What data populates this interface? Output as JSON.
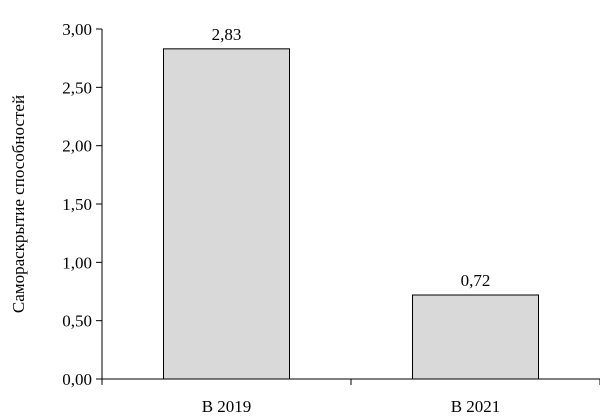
{
  "chart_data": {
    "type": "bar",
    "categories": [
      "В 2019",
      "В 2021"
    ],
    "values": [
      2.83,
      0.72
    ],
    "value_labels": [
      "2,83",
      "0,72"
    ],
    "title": "",
    "xlabel": "",
    "ylabel": "Самораскрытие способностей",
    "ylim": [
      0,
      3
    ],
    "yticks": [
      0,
      0.5,
      1,
      1.5,
      2,
      2.5,
      3
    ],
    "ytick_labels": [
      "0,00",
      "0,50",
      "1,00",
      "1,50",
      "2,00",
      "2,50",
      "3,00"
    ],
    "grid": false,
    "legend": "none",
    "bar_color": "#d9d9d9",
    "bar_edge_color": "#000000"
  }
}
